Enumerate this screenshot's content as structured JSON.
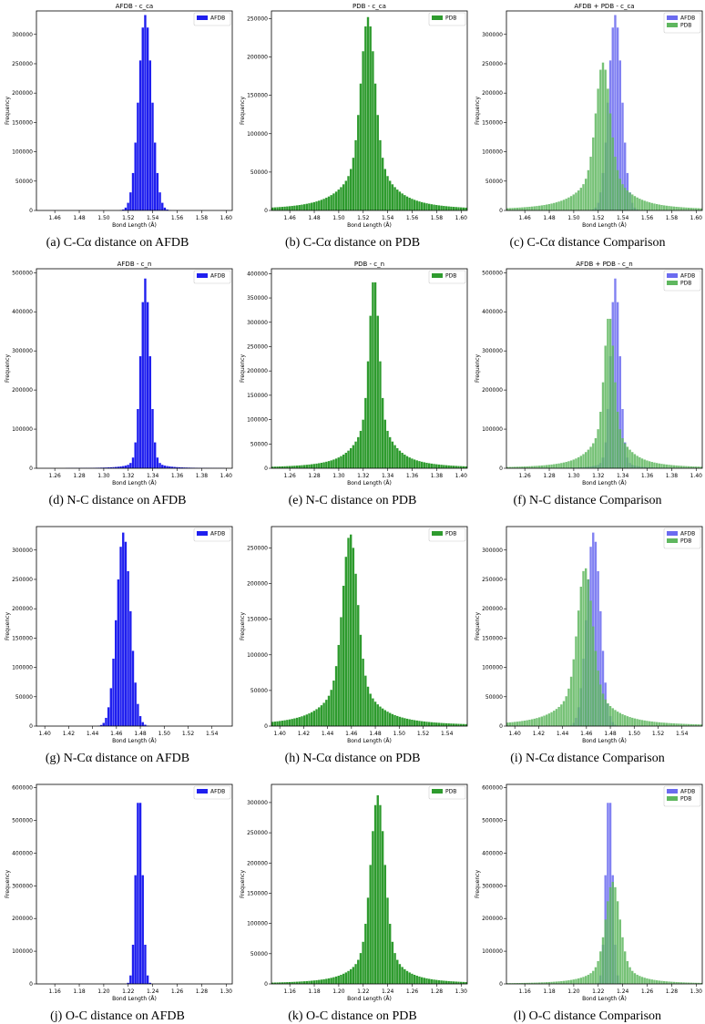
{
  "colors": {
    "afdb": "#1f1fef",
    "pdb": "#2e9b2e",
    "afdb_overlay": "#6b6bf0",
    "pdb_overlay": "#5fb75f"
  },
  "chart_data": [
    {
      "id": "a",
      "type": "bar",
      "title": "AFDB - c_ca",
      "xlabel": "Bond Length (Å)",
      "ylabel": "Frequency",
      "caption": "(a) C-Cα distance on AFDB",
      "xlim": [
        1.445,
        1.605
      ],
      "xticks": [
        "1.46",
        "1.48",
        "1.50",
        "1.52",
        "1.54",
        "1.56",
        "1.58",
        "1.60"
      ],
      "ylim": [
        0,
        340000
      ],
      "yticks": [
        "0",
        "50000",
        "100000",
        "150000",
        "200000",
        "250000",
        "300000"
      ],
      "series": [
        {
          "name": "AFDB",
          "color": "#1f1fef",
          "peak": 1.534,
          "height": 333000,
          "sigma": 0.0055,
          "tail": 0.0,
          "tail_width": 0.01
        }
      ]
    },
    {
      "id": "b",
      "type": "bar",
      "title": "PDB - c_ca",
      "xlabel": "Bond Length (Å)",
      "ylabel": "Frequency",
      "caption": "(b) C-Cα distance on PDB",
      "xlim": [
        1.445,
        1.605
      ],
      "xticks": [
        "1.46",
        "1.48",
        "1.50",
        "1.52",
        "1.54",
        "1.56",
        "1.58",
        "1.60"
      ],
      "ylim": [
        0,
        260000
      ],
      "yticks": [
        "0",
        "50000",
        "100000",
        "150000",
        "200000",
        "250000"
      ],
      "series": [
        {
          "name": "PDB",
          "color": "#2e9b2e",
          "peak": 1.524,
          "height": 252000,
          "sigma": 0.0055,
          "tail": 0.3,
          "tail_width": 0.018
        }
      ]
    },
    {
      "id": "c",
      "type": "bar",
      "title": "AFDB + PDB - c_ca",
      "xlabel": "Bond Length (Å)",
      "ylabel": "Frequency",
      "caption": "(c) C-Cα distance Comparison",
      "xlim": [
        1.445,
        1.605
      ],
      "xticks": [
        "1.46",
        "1.48",
        "1.50",
        "1.52",
        "1.54",
        "1.56",
        "1.58",
        "1.60"
      ],
      "ylim": [
        0,
        340000
      ],
      "yticks": [
        "0",
        "50000",
        "100000",
        "150000",
        "200000",
        "250000",
        "300000"
      ],
      "series": [
        {
          "name": "AFDB",
          "color": "#6b6bf0",
          "peak": 1.534,
          "height": 333000,
          "sigma": 0.0055,
          "tail": 0.0,
          "tail_width": 0.01
        },
        {
          "name": "PDB",
          "color": "#5fb75f",
          "peak": 1.524,
          "height": 252000,
          "sigma": 0.0055,
          "tail": 0.3,
          "tail_width": 0.018
        }
      ]
    },
    {
      "id": "d",
      "type": "bar",
      "title": "AFDB - c_n",
      "xlabel": "Bond Length (Å)",
      "ylabel": "Frequency",
      "caption": "(d) N-C distance on AFDB",
      "xlim": [
        1.245,
        1.405
      ],
      "xticks": [
        "1.26",
        "1.28",
        "1.30",
        "1.32",
        "1.34",
        "1.36",
        "1.38",
        "1.40"
      ],
      "ylim": [
        0,
        510000
      ],
      "yticks": [
        "0",
        "100000",
        "200000",
        "300000",
        "400000",
        "500000"
      ],
      "series": [
        {
          "name": "AFDB",
          "color": "#1f1fef",
          "peak": 1.334,
          "height": 485000,
          "sigma": 0.0038,
          "tail": 0.07,
          "tail_width": 0.008
        }
      ]
    },
    {
      "id": "e",
      "type": "bar",
      "title": "PDB - c_n",
      "xlabel": "Bond Length (Å)",
      "ylabel": "Frequency",
      "caption": "(e) N-C distance on PDB",
      "xlim": [
        1.245,
        1.405
      ],
      "xticks": [
        "1.26",
        "1.28",
        "1.30",
        "1.32",
        "1.34",
        "1.36",
        "1.38",
        "1.40"
      ],
      "ylim": [
        0,
        410000
      ],
      "yticks": [
        "0",
        "50000",
        "100000",
        "150000",
        "200000",
        "250000",
        "300000",
        "350000",
        "400000"
      ],
      "series": [
        {
          "name": "PDB",
          "color": "#2e9b2e",
          "peak": 1.329,
          "height": 392000,
          "sigma": 0.0038,
          "tail": 0.3,
          "tail_width": 0.014
        }
      ]
    },
    {
      "id": "f",
      "type": "bar",
      "title": "AFDB + PDB - c_n",
      "xlabel": "Bond Length (Å)",
      "ylabel": "Frequency",
      "caption": "(f) N-C distance Comparison",
      "xlim": [
        1.245,
        1.405
      ],
      "xticks": [
        "1.26",
        "1.28",
        "1.30",
        "1.32",
        "1.34",
        "1.36",
        "1.38",
        "1.40"
      ],
      "ylim": [
        0,
        510000
      ],
      "yticks": [
        "0",
        "100000",
        "200000",
        "300000",
        "400000",
        "500000"
      ],
      "series": [
        {
          "name": "AFDB",
          "color": "#6b6bf0",
          "peak": 1.334,
          "height": 485000,
          "sigma": 0.0038,
          "tail": 0.07,
          "tail_width": 0.008
        },
        {
          "name": "PDB",
          "color": "#5fb75f",
          "peak": 1.329,
          "height": 392000,
          "sigma": 0.0038,
          "tail": 0.3,
          "tail_width": 0.014
        }
      ]
    },
    {
      "id": "g",
      "type": "bar",
      "title": "",
      "xlabel": "Bond Length (Å)",
      "ylabel": "Frequency",
      "caption": "(g) N-Cα distance on AFDB",
      "xlim": [
        1.393,
        1.557
      ],
      "xticks": [
        "1.40",
        "1.42",
        "1.44",
        "1.46",
        "1.48",
        "1.50",
        "1.52",
        "1.54"
      ],
      "ylim": [
        0,
        340000
      ],
      "yticks": [
        "0",
        "50000",
        "100000",
        "150000",
        "200000",
        "250000",
        "300000"
      ],
      "series": [
        {
          "name": "AFDB",
          "color": "#1f1fef",
          "peak": 1.466,
          "height": 330000,
          "sigma": 0.0058,
          "tail": 0.0,
          "tail_width": 0.01
        }
      ]
    },
    {
      "id": "h",
      "type": "bar",
      "title": "",
      "xlabel": "Bond Length (Å)",
      "ylabel": "Frequency",
      "caption": "(h) N-Cα distance on PDB",
      "xlim": [
        1.393,
        1.557
      ],
      "xticks": [
        "1.40",
        "1.42",
        "1.44",
        "1.46",
        "1.48",
        "1.50",
        "1.52",
        "1.54"
      ],
      "ylim": [
        0,
        280000
      ],
      "yticks": [
        "0",
        "50000",
        "100000",
        "150000",
        "200000",
        "250000"
      ],
      "series": [
        {
          "name": "PDB",
          "color": "#2e9b2e",
          "peak": 1.459,
          "height": 270000,
          "sigma": 0.006,
          "tail": 0.28,
          "tail_width": 0.019
        }
      ]
    },
    {
      "id": "i",
      "type": "bar",
      "title": "",
      "xlabel": "Bond Length (Å)",
      "ylabel": "Frequency",
      "caption": "(i) N-Cα distance Comparison",
      "xlim": [
        1.393,
        1.557
      ],
      "xticks": [
        "1.40",
        "1.42",
        "1.44",
        "1.46",
        "1.48",
        "1.50",
        "1.52",
        "1.54"
      ],
      "ylim": [
        0,
        340000
      ],
      "yticks": [
        "0",
        "50000",
        "100000",
        "150000",
        "200000",
        "250000",
        "300000"
      ],
      "series": [
        {
          "name": "AFDB",
          "color": "#6b6bf0",
          "peak": 1.466,
          "height": 330000,
          "sigma": 0.0058,
          "tail": 0.0,
          "tail_width": 0.01
        },
        {
          "name": "PDB",
          "color": "#5fb75f",
          "peak": 1.459,
          "height": 270000,
          "sigma": 0.006,
          "tail": 0.28,
          "tail_width": 0.019
        }
      ]
    },
    {
      "id": "j",
      "type": "bar",
      "title": "",
      "xlabel": "Bond Length (Å)",
      "ylabel": "Frequency",
      "caption": "(j) O-C distance on AFDB",
      "xlim": [
        1.145,
        1.305
      ],
      "xticks": [
        "1.16",
        "1.18",
        "1.20",
        "1.22",
        "1.24",
        "1.26",
        "1.28",
        "1.30"
      ],
      "ylim": [
        0,
        610000
      ],
      "yticks": [
        "0",
        "100000",
        "200000",
        "300000",
        "400000",
        "500000",
        "600000"
      ],
      "series": [
        {
          "name": "AFDB",
          "color": "#1f1fef",
          "peak": 1.229,
          "height": 590000,
          "sigma": 0.0028,
          "tail": 0.0,
          "tail_width": 0.01
        }
      ]
    },
    {
      "id": "k",
      "type": "bar",
      "title": "",
      "xlabel": "Bond Length (Å)",
      "ylabel": "Frequency",
      "caption": "(k) O-C distance on PDB",
      "xlim": [
        1.145,
        1.305
      ],
      "xticks": [
        "1.16",
        "1.18",
        "1.20",
        "1.22",
        "1.24",
        "1.26",
        "1.28",
        "1.30"
      ],
      "ylim": [
        0,
        330000
      ],
      "yticks": [
        "0",
        "50000",
        "100000",
        "150000",
        "200000",
        "250000",
        "300000"
      ],
      "series": [
        {
          "name": "PDB",
          "color": "#2e9b2e",
          "peak": 1.232,
          "height": 312000,
          "sigma": 0.0055,
          "tail": 0.27,
          "tail_width": 0.014
        }
      ]
    },
    {
      "id": "l",
      "type": "bar",
      "title": "",
      "xlabel": "Bond Length (Å)",
      "ylabel": "Frequency",
      "caption": "(l) O-C distance Comparison",
      "xlim": [
        1.145,
        1.305
      ],
      "xticks": [
        "1.16",
        "1.18",
        "1.20",
        "1.22",
        "1.24",
        "1.26",
        "1.28",
        "1.30"
      ],
      "ylim": [
        0,
        610000
      ],
      "yticks": [
        "0",
        "100000",
        "200000",
        "300000",
        "400000",
        "500000",
        "600000"
      ],
      "series": [
        {
          "name": "AFDB",
          "color": "#6b6bf0",
          "peak": 1.229,
          "height": 590000,
          "sigma": 0.0028,
          "tail": 0.0,
          "tail_width": 0.01
        },
        {
          "name": "PDB",
          "color": "#5fb75f",
          "peak": 1.232,
          "height": 312000,
          "sigma": 0.0055,
          "tail": 0.27,
          "tail_width": 0.014
        }
      ]
    }
  ]
}
